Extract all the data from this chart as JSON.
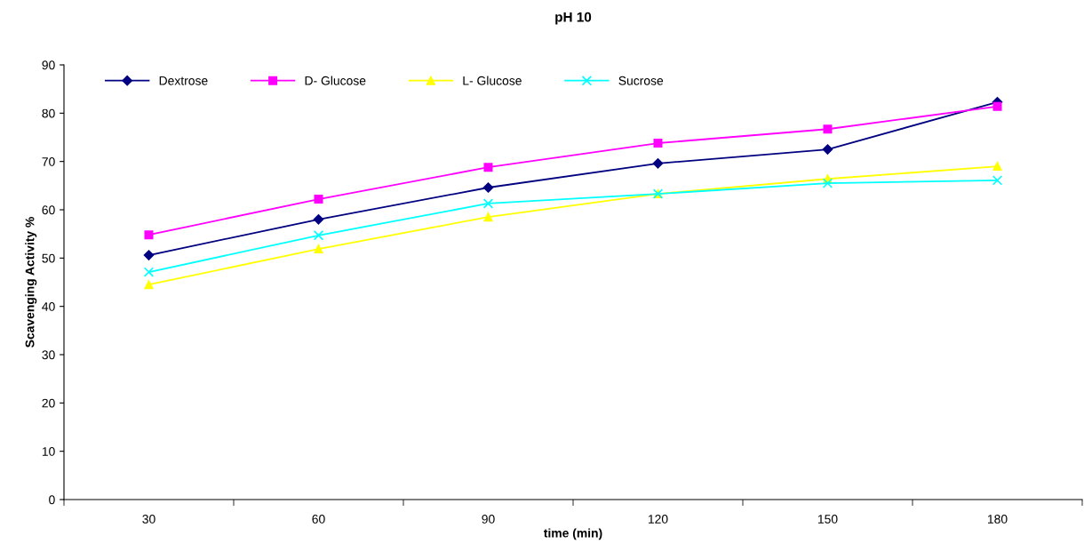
{
  "chart_data": {
    "type": "line",
    "title": "pH 10",
    "xlabel": "time (min)",
    "ylabel": "Scavenging Activity %",
    "categories": [
      "30",
      "60",
      "90",
      "120",
      "150",
      "180"
    ],
    "ylim": [
      0,
      90
    ],
    "yticks": [
      0,
      10,
      20,
      30,
      40,
      50,
      60,
      70,
      80,
      90
    ],
    "grid": false,
    "legend": "top left",
    "line_style": "solid",
    "series": [
      {
        "name": "Dextrose",
        "color": "#000080",
        "marker": "diamond",
        "values": [
          50.6,
          58.0,
          64.6,
          69.6,
          72.5,
          82.3
        ]
      },
      {
        "name": "D- Glucose",
        "color": "#ff00ff",
        "marker": "square",
        "values": [
          54.8,
          62.2,
          68.8,
          73.8,
          76.7,
          81.4
        ]
      },
      {
        "name": "L- Glucose",
        "color": "#ffff00",
        "marker": "triangle",
        "values": [
          44.5,
          51.9,
          58.5,
          63.3,
          66.4,
          69.0
        ]
      },
      {
        "name": "Sucrose",
        "color": "#00ffff",
        "marker": "cross",
        "values": [
          47.1,
          54.7,
          61.3,
          63.3,
          65.5,
          66.1
        ]
      }
    ]
  }
}
